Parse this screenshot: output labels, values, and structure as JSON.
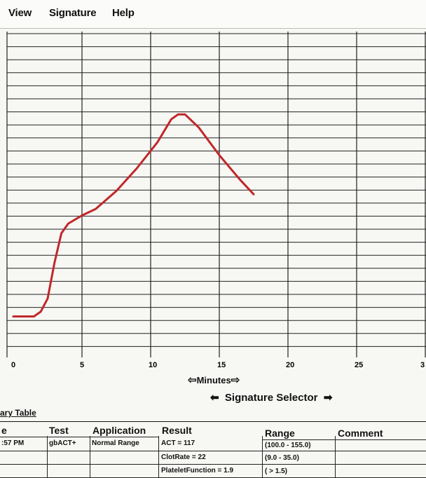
{
  "menu": {
    "items": [
      "View",
      "Signature",
      "Help"
    ]
  },
  "chart_data": {
    "type": "line",
    "xlabel": "Minutes",
    "xlim": [
      0,
      30
    ],
    "x_ticks": [
      "0",
      "5",
      "10",
      "15",
      "20",
      "25",
      "3"
    ],
    "ylim": [
      0,
      1
    ],
    "grid": true,
    "series": [
      {
        "color": "#c0282a",
        "x": [
          0,
          0.8,
          1.5,
          2.0,
          2.5,
          3.0,
          3.5,
          4.0,
          5.0,
          6.0,
          7.5,
          9.0,
          10.5,
          11.5,
          12.0,
          12.5,
          13.5,
          15.0,
          16.5,
          17.5
        ],
        "y": [
          0.115,
          0.115,
          0.115,
          0.13,
          0.17,
          0.28,
          0.37,
          0.4,
          0.425,
          0.445,
          0.5,
          0.57,
          0.65,
          0.72,
          0.735,
          0.735,
          0.695,
          0.61,
          0.535,
          0.49
        ]
      }
    ]
  },
  "nav": {
    "minutes_label": "Minutes",
    "signature_selector_label": "Signature Selector"
  },
  "summary": {
    "title": "ary Table",
    "headers": {
      "time": "e",
      "test": "Test",
      "application": "Application",
      "result": "Result",
      "range": "Range",
      "comment": "Comment"
    },
    "row": {
      "time": ":57 PM",
      "test": "gbACT+",
      "application": "Normal Range"
    },
    "results": [
      {
        "result": "ACT = 117",
        "range": "(100.0 - 155.0)"
      },
      {
        "result": "ClotRate = 22",
        "range": "(9.0 - 35.0)"
      },
      {
        "result": "PlateletFunction = 1.9",
        "range": "( > 1.5)"
      }
    ]
  }
}
